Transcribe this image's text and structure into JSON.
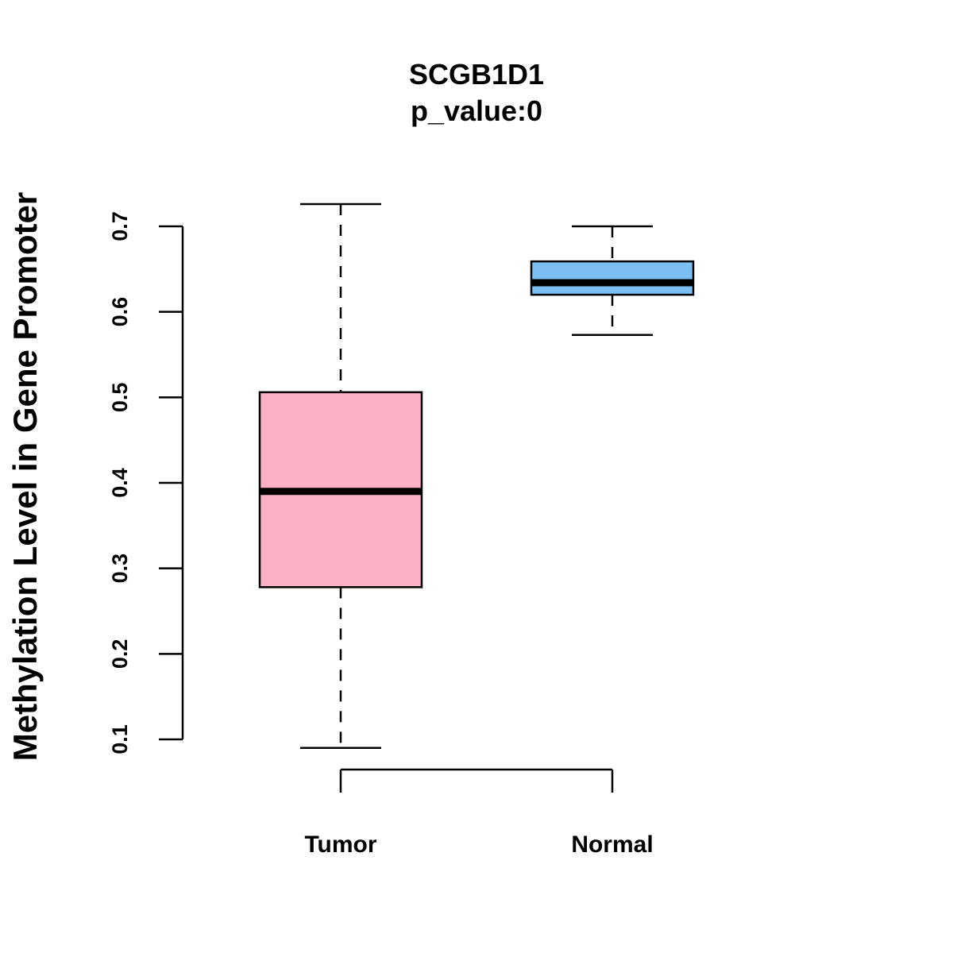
{
  "chart_data": {
    "type": "boxplot",
    "title": "SCGB1D1",
    "subtitle": "p_value:0",
    "xlabel": "",
    "ylabel": "Methylation Level in Gene Promoter",
    "ylim": [
      0.09,
      0.725
    ],
    "yticks": [
      0.1,
      0.2,
      0.3,
      0.4,
      0.5,
      0.6,
      0.7
    ],
    "yticks_labels": [
      "0.1",
      "0.2",
      "0.3",
      "0.4",
      "0.5",
      "0.6",
      "0.7"
    ],
    "categories": [
      "Tumor",
      "Normal"
    ],
    "boxes": [
      {
        "name": "Tumor",
        "whisker_low": 0.09,
        "q1": 0.278,
        "median": 0.39,
        "q3": 0.506,
        "whisker_high": 0.726,
        "color": "#FBB0C4"
      },
      {
        "name": "Normal",
        "whisker_low": 0.573,
        "q1": 0.62,
        "median": 0.634,
        "q3": 0.659,
        "whisker_high": 0.7,
        "color": "#7BBFF2"
      }
    ]
  }
}
